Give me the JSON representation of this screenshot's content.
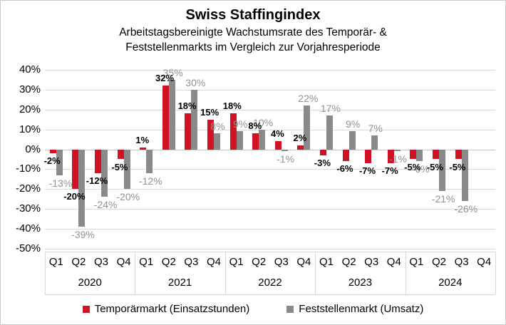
{
  "title": "Swiss Staffingindex",
  "subtitle_line1": "Arbeitstagsbereinigte Wachstumsrate des Temporär- &",
  "subtitle_line2": "Feststellenmarkts im Vergleich zur Vorjahresperiode",
  "colors": {
    "temporaermarkt_red": "#d01224",
    "feststellenmarkt_gray": "#8a8a8a",
    "gray_label": "#919191",
    "gridline": "#d9d9d9"
  },
  "legend": [
    {
      "label": "Temporärmarkt (Einsatzstunden)",
      "color": "#d01224"
    },
    {
      "label": "Feststellenmarkt (Umsatz)",
      "color": "#8a8a8a"
    }
  ],
  "chart_data": {
    "type": "bar",
    "title": "Swiss Staffingindex",
    "subtitle": "Arbeitstagsbereinigte Wachstumsrate des Temporär- & Feststellenmarkts im Vergleich zur Vorjahresperiode",
    "years": [
      "2020",
      "2021",
      "2022",
      "2023",
      "2024"
    ],
    "quarters": [
      "Q1",
      "Q2",
      "Q3",
      "Q4"
    ],
    "y_axis": {
      "min": -50,
      "max": 40,
      "step": 10,
      "unit": "%",
      "tick_labels": [
        "40%",
        "30%",
        "20%",
        "10%",
        "0%",
        "-10%",
        "-20%",
        "-30%",
        "-40%",
        "-50%"
      ]
    },
    "grid": true,
    "legend_position": "bottom",
    "data_labels": true,
    "series": [
      {
        "name": "Temporärmarkt (Einsatzstunden)",
        "color": "#d01224",
        "values": [
          [
            -2,
            -20,
            -12,
            -5
          ],
          [
            1,
            32,
            18,
            15
          ],
          [
            18,
            8,
            4,
            2
          ],
          [
            -3,
            -6,
            -7,
            -7
          ],
          [
            -5,
            -5,
            -5,
            null
          ]
        ],
        "labels": [
          [
            "-2%",
            "-20%",
            "-12%",
            "-5%"
          ],
          [
            "1%",
            "32%",
            "18%",
            "15%"
          ],
          [
            "18%",
            "8%",
            "4%",
            "2%"
          ],
          [
            "-3%",
            "-6%",
            "-7%",
            "-7%"
          ],
          [
            "-5%",
            "-5%",
            "-5%",
            null
          ]
        ]
      },
      {
        "name": "Feststellenmarkt (Umsatz)",
        "color": "#8a8a8a",
        "values": [
          [
            -13,
            -39,
            -24,
            -20
          ],
          [
            -12,
            35,
            30,
            8
          ],
          [
            9,
            10,
            -1,
            22
          ],
          [
            17,
            9,
            7,
            -1
          ],
          [
            -6,
            -21,
            -26,
            null
          ]
        ],
        "labels": [
          [
            "-13%",
            "-39%",
            "-24%",
            "-20%"
          ],
          [
            "-12%",
            "35%",
            "30%",
            "8%"
          ],
          [
            "9%",
            "10%",
            "-1%",
            "22%"
          ],
          [
            "17%",
            "9%",
            "7%",
            "-1%"
          ],
          [
            "-6%",
            "-21%",
            "-26%",
            null
          ]
        ]
      }
    ]
  }
}
